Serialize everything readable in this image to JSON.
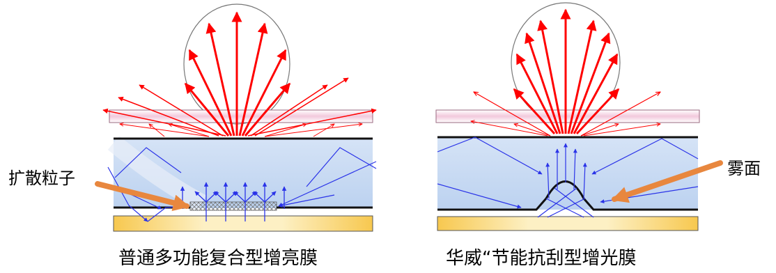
{
  "labels": {
    "left_annotation": "扩散粒子",
    "right_annotation": "雾面",
    "left_caption": "普通多功能复合型增亮膜",
    "right_caption": "华威“节能抗刮型增光膜"
  },
  "colors": {
    "red_ray": "#ff0000",
    "blue_ray": "#2a33e8",
    "arrow_orange": "#e8873e",
    "film_fill": "#c9daf3",
    "top_film_fill": "#f4d3e3",
    "bottom_fill": "#f9d36b",
    "black_line": "#111111"
  }
}
